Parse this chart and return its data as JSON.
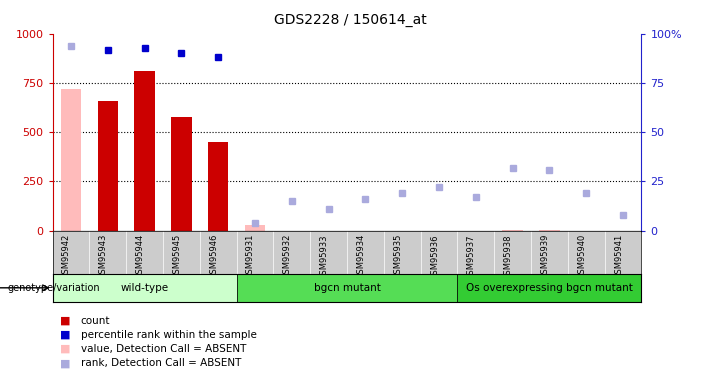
{
  "title": "GDS2228 / 150614_at",
  "samples": [
    "GSM95942",
    "GSM95943",
    "GSM95944",
    "GSM95945",
    "GSM95946",
    "GSM95931",
    "GSM95932",
    "GSM95933",
    "GSM95934",
    "GSM95935",
    "GSM95936",
    "GSM95937",
    "GSM95938",
    "GSM95939",
    "GSM95940",
    "GSM95941"
  ],
  "bar_data": [
    {
      "idx": 0,
      "val": 720,
      "absent": true
    },
    {
      "idx": 1,
      "val": 660,
      "absent": false
    },
    {
      "idx": 2,
      "val": 810,
      "absent": false
    },
    {
      "idx": 3,
      "val": 575,
      "absent": false
    },
    {
      "idx": 4,
      "val": 450,
      "absent": false
    },
    {
      "idx": 5,
      "val": 30,
      "absent": true
    },
    {
      "idx": 12,
      "val": 4,
      "absent": true
    },
    {
      "idx": 13,
      "val": 4,
      "absent": true
    }
  ],
  "rank_present": [
    {
      "idx": 1,
      "rank": 92
    },
    {
      "idx": 2,
      "rank": 93
    },
    {
      "idx": 3,
      "rank": 90
    },
    {
      "idx": 4,
      "rank": 88
    }
  ],
  "rank_absent": [
    {
      "idx": 0,
      "rank": 94
    },
    {
      "idx": 5,
      "rank": 4
    },
    {
      "idx": 6,
      "rank": 15
    },
    {
      "idx": 7,
      "rank": 11
    },
    {
      "idx": 8,
      "rank": 16
    },
    {
      "idx": 9,
      "rank": 19
    },
    {
      "idx": 10,
      "rank": 22
    },
    {
      "idx": 11,
      "rank": 17
    },
    {
      "idx": 12,
      "rank": 32
    },
    {
      "idx": 13,
      "rank": 31
    },
    {
      "idx": 14,
      "rank": 19
    },
    {
      "idx": 15,
      "rank": 8
    }
  ],
  "groups": [
    {
      "label": "wild-type",
      "start": 0,
      "end": 5
    },
    {
      "label": "bgcn mutant",
      "start": 5,
      "end": 11
    },
    {
      "label": "Os overexpressing bgcn mutant",
      "start": 11,
      "end": 16
    }
  ],
  "group_colors": [
    "#ccffcc",
    "#55dd55",
    "#33cc33"
  ],
  "ylim_left": [
    0,
    1000
  ],
  "ylim_right": [
    0,
    100
  ],
  "yticks_left": [
    0,
    250,
    500,
    750,
    1000
  ],
  "yticks_right": [
    0,
    25,
    50,
    75,
    100
  ],
  "left_axis_color": "#cc0000",
  "right_axis_color": "#2222cc",
  "bar_color_present": "#cc0000",
  "bar_color_absent": "#ffbbbb",
  "dot_color_present": "#0000cc",
  "dot_color_absent": "#aaaadd",
  "legend_items": [
    {
      "color": "#cc0000",
      "label": "count"
    },
    {
      "color": "#0000cc",
      "label": "percentile rank within the sample"
    },
    {
      "color": "#ffbbbb",
      "label": "value, Detection Call = ABSENT"
    },
    {
      "color": "#aaaadd",
      "label": "rank, Detection Call = ABSENT"
    }
  ]
}
